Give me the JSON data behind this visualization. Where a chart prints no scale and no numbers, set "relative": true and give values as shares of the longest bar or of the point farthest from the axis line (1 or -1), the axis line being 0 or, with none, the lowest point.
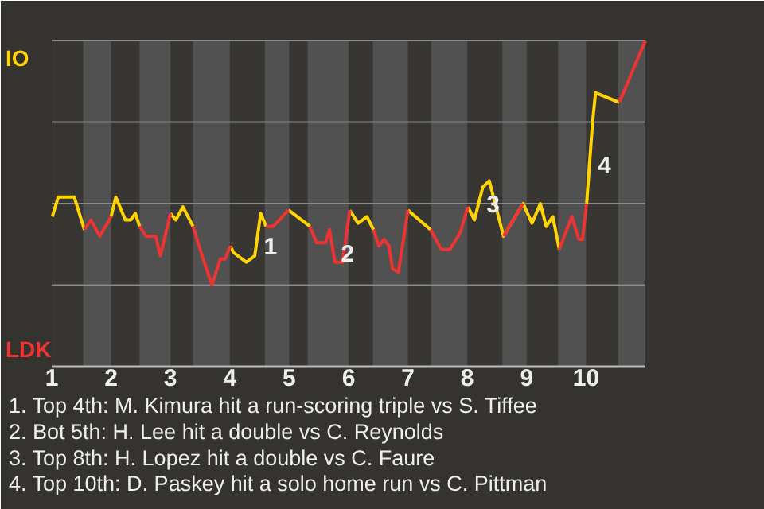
{
  "chart_data": {
    "type": "line",
    "relative": true,
    "grid": "y",
    "xlim": [
      1,
      11
    ],
    "xticks": [
      1,
      2,
      3,
      4,
      5,
      6,
      7,
      8,
      9,
      10
    ],
    "series": [
      {
        "name": "IO",
        "color": "#ffd400",
        "x": [
          1.01,
          1.11,
          1.38,
          1.55,
          1.66,
          1.81,
          2.0,
          2.08,
          2.24,
          2.33,
          2.41,
          2.48,
          2.59,
          2.75,
          2.83,
          3.0,
          3.09,
          3.21,
          3.38,
          3.55,
          3.7,
          3.84,
          3.92,
          4.01,
          4.06,
          4.28,
          4.42,
          4.52,
          4.61,
          4.73,
          4.99,
          5.35,
          5.46,
          5.61,
          5.68,
          5.77,
          5.9,
          6.02,
          6.16,
          6.31,
          6.42,
          6.51,
          6.6,
          6.68,
          6.74,
          6.84,
          7.0,
          7.38,
          7.56,
          7.71,
          7.88,
          8.01,
          8.12,
          8.26,
          8.37,
          8.61,
          8.94,
          9.09,
          9.23,
          9.33,
          9.44,
          9.55,
          9.76,
          9.88,
          9.94,
          10.01,
          10.11,
          10.16,
          10.56
        ],
        "values": [
          0.46,
          0.52,
          0.52,
          0.42,
          null,
          null,
          0.46,
          0.52,
          0.45,
          0.45,
          0.47,
          0.43,
          null,
          null,
          null,
          0.47,
          0.45,
          0.49,
          0.43,
          null,
          null,
          null,
          null,
          0.37,
          0.35,
          0.32,
          0.34,
          0.47,
          0.43,
          null,
          0.48,
          0.43,
          null,
          null,
          null,
          null,
          null,
          0.48,
          0.44,
          0.46,
          0.42,
          null,
          null,
          null,
          null,
          null,
          0.48,
          0.42,
          null,
          null,
          null,
          0.49,
          0.45,
          0.55,
          0.57,
          0.4,
          0.5,
          0.44,
          0.5,
          0.43,
          0.46,
          0.36,
          null,
          null,
          null,
          0.5,
          0.75,
          0.84,
          0.81
        ]
      },
      {
        "name": "LDK",
        "color": "#ee3333",
        "x": [
          1.55,
          1.66,
          1.81,
          2.0,
          2.08,
          2.24,
          2.33,
          2.41,
          2.48,
          2.59,
          2.75,
          2.83,
          3.0,
          3.09,
          3.21,
          3.38,
          3.55,
          3.7,
          3.84,
          3.92,
          4.01,
          4.06,
          4.28,
          4.42,
          4.52,
          4.61,
          4.73,
          4.99,
          5.2,
          5.35,
          5.46,
          5.61,
          5.68,
          5.77,
          5.9,
          6.02,
          6.16,
          6.31,
          6.42,
          6.51,
          6.6,
          6.68,
          6.74,
          6.84,
          7.0,
          7.2,
          7.38,
          7.56,
          7.71,
          7.88,
          8.01,
          8.12,
          8.26,
          8.37,
          8.61,
          8.94,
          9.09,
          9.23,
          9.33,
          9.44,
          9.55,
          9.76,
          9.88,
          9.94,
          10.01,
          10.11,
          10.16,
          10.56,
          11.0
        ],
        "values": [
          0.42,
          0.45,
          0.4,
          0.46,
          null,
          null,
          null,
          null,
          0.43,
          0.4,
          0.4,
          0.34,
          0.47,
          null,
          null,
          0.43,
          0.33,
          0.25,
          0.33,
          0.33,
          0.37,
          null,
          null,
          null,
          null,
          0.43,
          0.43,
          0.48,
          null,
          0.43,
          0.38,
          0.38,
          0.42,
          0.32,
          0.32,
          0.48,
          null,
          null,
          0.42,
          0.37,
          0.39,
          0.37,
          0.3,
          0.29,
          0.48,
          null,
          0.42,
          0.36,
          0.36,
          0.41,
          0.49,
          null,
          null,
          null,
          0.4,
          0.5,
          null,
          null,
          null,
          null,
          0.36,
          0.46,
          0.39,
          0.39,
          0.5,
          null,
          null,
          0.81,
          1
        ]
      }
    ],
    "bands": [
      {
        "axis": "x",
        "from": 1.53,
        "to": 2.0,
        "color": "#515151"
      },
      {
        "axis": "x",
        "from": 2.48,
        "to": 3.0,
        "color": "#515151"
      },
      {
        "axis": "x",
        "from": 3.38,
        "to": 4.0,
        "color": "#515151"
      },
      {
        "axis": "x",
        "from": 4.59,
        "to": 5.0,
        "color": "#515151"
      },
      {
        "axis": "x",
        "from": 5.31,
        "to": 6.0,
        "color": "#515151"
      },
      {
        "axis": "x",
        "from": 6.41,
        "to": 7.0,
        "color": "#515151"
      },
      {
        "axis": "x",
        "from": 7.39,
        "to": 8.0,
        "color": "#515151"
      },
      {
        "axis": "x",
        "from": 8.59,
        "to": 9.0,
        "color": "#515151"
      },
      {
        "axis": "x",
        "from": 9.53,
        "to": 10.0,
        "color": "#515151"
      },
      {
        "axis": "x",
        "from": 10.54,
        "to": 11.0,
        "color": "#515151"
      }
    ],
    "annotations": [
      {
        "text": "1",
        "x": 4.44,
        "y": 0.37
      },
      {
        "text": "2",
        "x": 5.74,
        "y": 0.35
      },
      {
        "text": "3",
        "x": 8.19,
        "y": 0.5
      },
      {
        "text": "4",
        "x": 10.06,
        "y": 0.62
      },
      "1. Top 4th: M. Kimura hit a run-scoring triple vs S. Tiffee",
      "2. Bot 5th: H. Lee hit a double vs C. Reynolds",
      "3. Top 8th: H. Lopez hit a double vs C. Faure",
      "4. Top 10th: D. Paskey hit a solo home run vs C. Pittman"
    ]
  }
}
